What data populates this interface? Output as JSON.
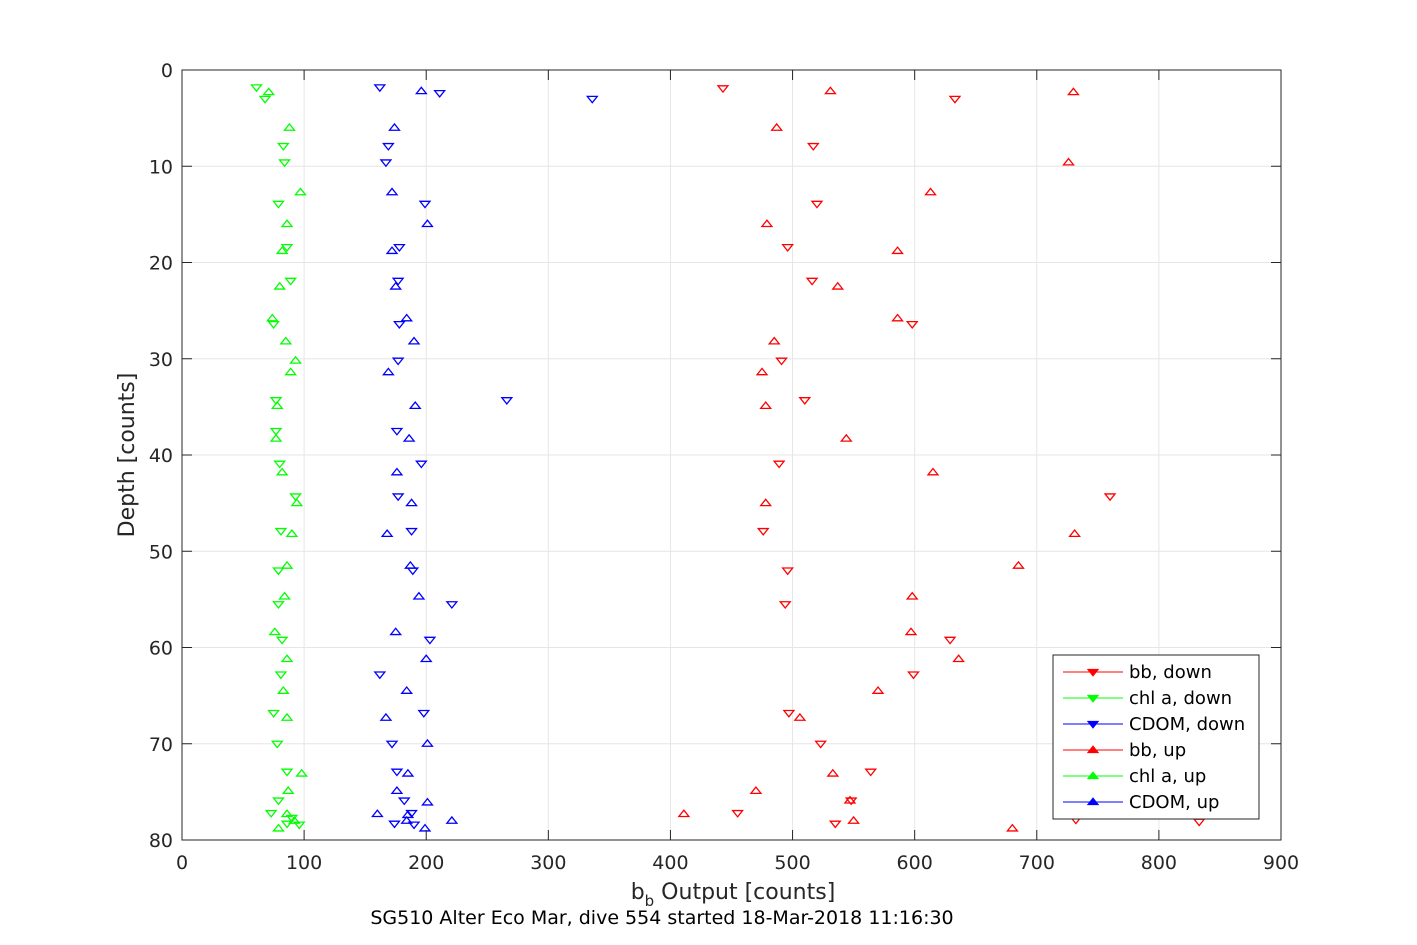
{
  "chart_data": {
    "type": "scatter",
    "title": "",
    "caption": "SG510 Alter Eco Mar, dive 554 started 18-Mar-2018 11:16:30",
    "xlabel_main": "b",
    "xlabel_sub": "b",
    "xlabel_rest": " Output [counts]",
    "ylabel": "Depth [counts]",
    "xlim": [
      0,
      900
    ],
    "ylim": [
      0,
      80
    ],
    "y_reversed": true,
    "grid": true,
    "legend_position": "bottom-right",
    "x_ticks": [
      0,
      100,
      200,
      300,
      400,
      500,
      600,
      700,
      800,
      900
    ],
    "y_ticks": [
      0,
      10,
      20,
      30,
      40,
      50,
      60,
      70,
      80
    ],
    "series": [
      {
        "name": "bb, down",
        "color": "#ff0000",
        "marker": "triangle-down",
        "points": [
          [
            443,
            1.9
          ],
          [
            633,
            3.0
          ],
          [
            517,
            7.9
          ],
          [
            520,
            13.9
          ],
          [
            496,
            18.4
          ],
          [
            516,
            21.9
          ],
          [
            598,
            26.4
          ],
          [
            491,
            30.2
          ],
          [
            510,
            34.3
          ],
          [
            489,
            40.9
          ],
          [
            760,
            44.3
          ],
          [
            476,
            47.9
          ],
          [
            496,
            52.0
          ],
          [
            494,
            55.5
          ],
          [
            629,
            59.2
          ],
          [
            599,
            62.8
          ],
          [
            497,
            66.8
          ],
          [
            523,
            70.0
          ],
          [
            564,
            72.9
          ],
          [
            548,
            75.9
          ],
          [
            455,
            77.2
          ],
          [
            535,
            78.3
          ],
          [
            732,
            77.9
          ],
          [
            833,
            78.1
          ]
        ]
      },
      {
        "name": "chl a, down",
        "color": "#00ff00",
        "marker": "triangle-down",
        "points": [
          [
            61,
            1.8
          ],
          [
            68,
            3.0
          ],
          [
            83,
            7.9
          ],
          [
            84,
            9.6
          ],
          [
            79,
            13.9
          ],
          [
            86,
            18.4
          ],
          [
            89,
            21.9
          ],
          [
            75,
            26.4
          ],
          [
            77,
            34.3
          ],
          [
            77,
            37.5
          ],
          [
            80,
            40.9
          ],
          [
            93,
            44.3
          ],
          [
            81,
            47.9
          ],
          [
            79,
            52.0
          ],
          [
            79,
            55.5
          ],
          [
            82,
            59.2
          ],
          [
            81,
            62.8
          ],
          [
            75,
            66.8
          ],
          [
            78,
            70.0
          ],
          [
            86,
            72.9
          ],
          [
            79,
            75.9
          ],
          [
            73,
            77.2
          ],
          [
            90,
            77.7
          ],
          [
            96,
            78.4
          ],
          [
            86,
            78.3
          ]
        ]
      },
      {
        "name": "CDOM, down",
        "color": "#0000ff",
        "marker": "triangle-down",
        "points": [
          [
            162,
            1.8
          ],
          [
            211,
            2.4
          ],
          [
            336,
            3.0
          ],
          [
            169,
            7.9
          ],
          [
            167,
            9.6
          ],
          [
            199,
            13.9
          ],
          [
            178,
            18.4
          ],
          [
            177,
            21.9
          ],
          [
            178,
            26.4
          ],
          [
            177,
            30.2
          ],
          [
            266,
            34.3
          ],
          [
            176,
            37.5
          ],
          [
            196,
            40.9
          ],
          [
            177,
            44.3
          ],
          [
            188,
            47.9
          ],
          [
            189,
            52.0
          ],
          [
            221,
            55.5
          ],
          [
            203,
            59.2
          ],
          [
            162,
            62.8
          ],
          [
            198,
            66.8
          ],
          [
            172,
            70.0
          ],
          [
            176,
            72.9
          ],
          [
            182,
            75.9
          ],
          [
            188,
            77.2
          ],
          [
            174,
            78.3
          ],
          [
            190,
            78.4
          ]
        ]
      },
      {
        "name": "bb, up",
        "color": "#ff0000",
        "marker": "triangle-up",
        "points": [
          [
            531,
            2.2
          ],
          [
            730,
            2.3
          ],
          [
            487,
            6.0
          ],
          [
            726,
            9.6
          ],
          [
            613,
            12.7
          ],
          [
            479,
            16.0
          ],
          [
            586,
            18.8
          ],
          [
            537,
            22.5
          ],
          [
            586,
            25.8
          ],
          [
            485,
            28.2
          ],
          [
            475,
            31.4
          ],
          [
            478,
            34.9
          ],
          [
            544,
            38.3
          ],
          [
            615,
            41.8
          ],
          [
            478,
            45.0
          ],
          [
            731,
            48.2
          ],
          [
            685,
            51.5
          ],
          [
            598,
            54.7
          ],
          [
            597,
            58.4
          ],
          [
            636,
            61.2
          ],
          [
            570,
            64.5
          ],
          [
            506,
            67.3
          ],
          [
            533,
            73.1
          ],
          [
            470,
            74.9
          ],
          [
            547,
            75.9
          ],
          [
            411,
            77.3
          ],
          [
            550,
            78.0
          ],
          [
            680,
            78.8
          ]
        ]
      },
      {
        "name": "chl a, up",
        "color": "#00ff00",
        "marker": "triangle-up",
        "points": [
          [
            71,
            2.3
          ],
          [
            88,
            6.0
          ],
          [
            97,
            12.7
          ],
          [
            86,
            16.0
          ],
          [
            82,
            18.8
          ],
          [
            80,
            22.5
          ],
          [
            74,
            25.8
          ],
          [
            85,
            28.2
          ],
          [
            93,
            30.2
          ],
          [
            89,
            31.4
          ],
          [
            78,
            34.9
          ],
          [
            77,
            38.3
          ],
          [
            82,
            41.8
          ],
          [
            94,
            45.0
          ],
          [
            90,
            48.2
          ],
          [
            86,
            51.5
          ],
          [
            84,
            54.7
          ],
          [
            76,
            58.4
          ],
          [
            86,
            61.2
          ],
          [
            83,
            64.5
          ],
          [
            86,
            67.3
          ],
          [
            98,
            73.1
          ],
          [
            87,
            74.9
          ],
          [
            86,
            77.3
          ],
          [
            92,
            78.0
          ],
          [
            79,
            78.8
          ]
        ]
      },
      {
        "name": "CDOM, up",
        "color": "#0000ff",
        "marker": "triangle-up",
        "points": [
          [
            196,
            2.2
          ],
          [
            174,
            6.0
          ],
          [
            172,
            12.7
          ],
          [
            201,
            16.0
          ],
          [
            172,
            18.8
          ],
          [
            175,
            22.5
          ],
          [
            184,
            25.8
          ],
          [
            190,
            28.2
          ],
          [
            169,
            31.4
          ],
          [
            191,
            34.9
          ],
          [
            186,
            38.3
          ],
          [
            176,
            41.8
          ],
          [
            188,
            45.0
          ],
          [
            168,
            48.2
          ],
          [
            187,
            51.5
          ],
          [
            194,
            54.7
          ],
          [
            175,
            58.4
          ],
          [
            200,
            61.2
          ],
          [
            184,
            64.5
          ],
          [
            167,
            67.3
          ],
          [
            201,
            70.0
          ],
          [
            185,
            73.1
          ],
          [
            176,
            74.9
          ],
          [
            201,
            76.1
          ],
          [
            160,
            77.3
          ],
          [
            185,
            77.4
          ],
          [
            184,
            78.0
          ],
          [
            199,
            78.8
          ],
          [
            221,
            78.0
          ]
        ]
      }
    ]
  }
}
